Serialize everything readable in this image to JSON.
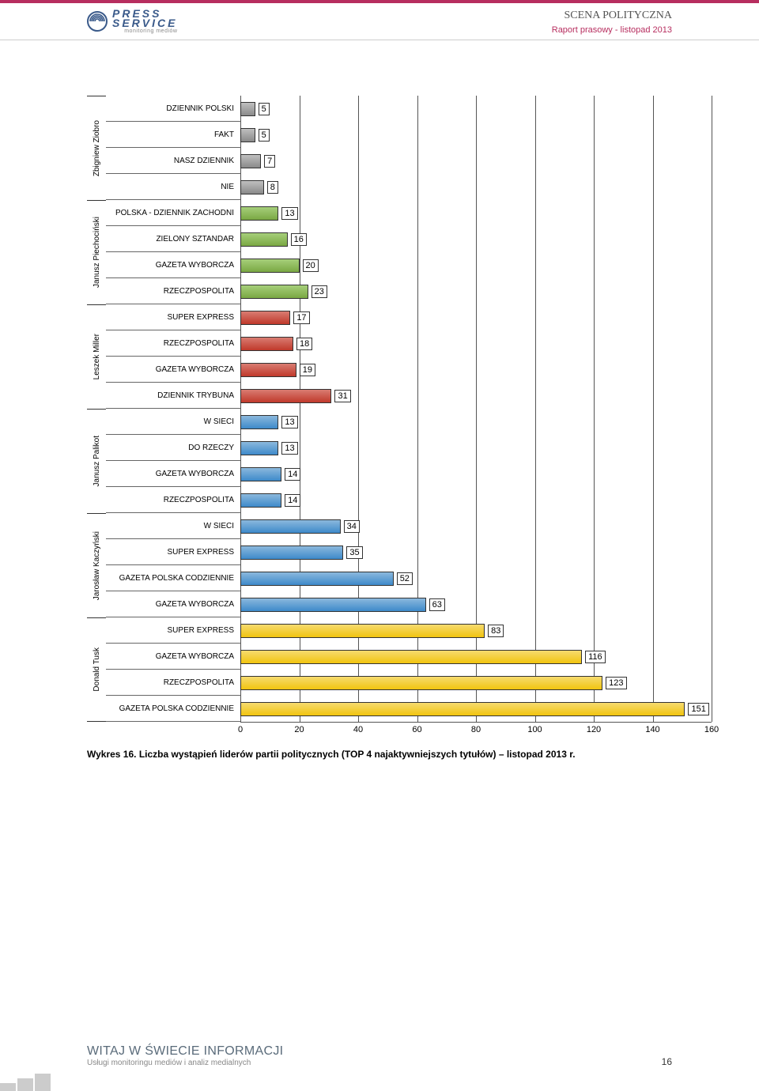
{
  "header": {
    "logo_main1": "PRESS",
    "logo_main2": "SERVICE",
    "logo_sub": "monitoring mediów",
    "title": "SCENA POLITYCZNA",
    "subtitle": "Raport prasowy - listopad 2013"
  },
  "chart": {
    "type": "bar",
    "x_max": 160,
    "x_ticks": [
      0,
      20,
      40,
      60,
      80,
      100,
      120,
      140,
      160
    ],
    "tick_color": "#555555",
    "background_color": "#ffffff",
    "label_fontsize": 10,
    "value_fontsize": 11,
    "bar_border_color": "#333333",
    "groups": [
      {
        "name": "Zbigniew Ziobro",
        "color": "#8a8a8a",
        "light": "#bfbfbf",
        "rows": [
          {
            "label": "DZIENNIK POLSKI",
            "value": 5
          },
          {
            "label": "FAKT",
            "value": 5
          },
          {
            "label": "NASZ DZIENNIK",
            "value": 7
          },
          {
            "label": "NIE",
            "value": 8
          }
        ]
      },
      {
        "name": "Janusz Piechociński",
        "color": "#7aa843",
        "light": "#a6cf7a",
        "rows": [
          {
            "label": "POLSKA - DZIENNIK ZACHODNI",
            "value": 13
          },
          {
            "label": "ZIELONY SZTANDAR",
            "value": 16
          },
          {
            "label": "GAZETA WYBORCZA",
            "value": 20
          },
          {
            "label": "RZECZPOSPOLITA",
            "value": 23
          }
        ]
      },
      {
        "name": "Leszek Miller",
        "color": "#c0392b",
        "light": "#d97c72",
        "rows": [
          {
            "label": "SUPER EXPRESS",
            "value": 17
          },
          {
            "label": "RZECZPOSPOLITA",
            "value": 18
          },
          {
            "label": "GAZETA WYBORCZA",
            "value": 19
          },
          {
            "label": "DZIENNIK TRYBUNA",
            "value": 31
          }
        ]
      },
      {
        "name": "Janusz Palikot",
        "color": "#3e8aca",
        "light": "#8bb8dd",
        "rows": [
          {
            "label": "W SIECI",
            "value": 13
          },
          {
            "label": "DO RZECZY",
            "value": 13
          },
          {
            "label": "GAZETA WYBORCZA",
            "value": 14
          },
          {
            "label": "RZECZPOSPOLITA",
            "value": 14
          }
        ]
      },
      {
        "name": "Jarosław Kaczyński",
        "color": "#3e8aca",
        "light": "#8bb8dd",
        "rows": [
          {
            "label": "W SIECI",
            "value": 34
          },
          {
            "label": "SUPER EXPRESS",
            "value": 35
          },
          {
            "label": "GAZETA POLSKA CODZIENNIE",
            "value": 52
          },
          {
            "label": "GAZETA WYBORCZA",
            "value": 63
          }
        ]
      },
      {
        "name": "Donald Tusk",
        "color": "#f1c40f",
        "light": "#f6db6f",
        "rows": [
          {
            "label": "SUPER EXPRESS",
            "value": 83
          },
          {
            "label": "GAZETA WYBORCZA",
            "value": 116
          },
          {
            "label": "RZECZPOSPOLITA",
            "value": 123
          },
          {
            "label": "GAZETA POLSKA CODZIENNIE",
            "value": 151
          }
        ]
      }
    ]
  },
  "caption": "Wykres 16. Liczba wystąpień liderów partii politycznych (TOP 4 najaktywniejszych tytułów) – listopad 2013 r.",
  "footer": {
    "title": "WITAJ W ŚWIECIE INFORMACJI",
    "sub": "Usługi monitoringu mediów i analiz medialnych",
    "page": "16"
  }
}
